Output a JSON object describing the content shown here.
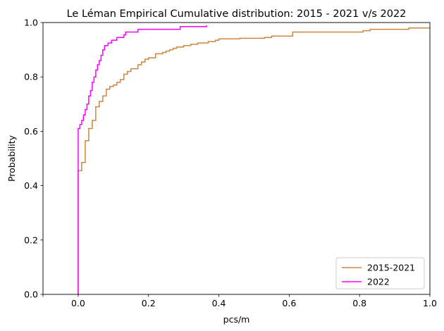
{
  "chart_data": {
    "type": "line",
    "subtype": "step-ecdf",
    "title": "Le Léman Empirical Cumulative distribution: 2015 - 2021 v/s 2022",
    "xlabel": "pcs/m",
    "ylabel": "Probability",
    "xlim": [
      -0.1,
      1.0
    ],
    "ylim": [
      0.0,
      1.0
    ],
    "xticks": [
      {
        "value": 0.0,
        "label": "0.0"
      },
      {
        "value": 0.2,
        "label": "0.2"
      },
      {
        "value": 0.4,
        "label": "0.4"
      },
      {
        "value": 0.6,
        "label": "0.6"
      },
      {
        "value": 0.8,
        "label": "0.8"
      },
      {
        "value": 1.0,
        "label": "1.0"
      }
    ],
    "yticks": [
      {
        "value": 0.0,
        "label": "0.0"
      },
      {
        "value": 0.2,
        "label": "0.2"
      },
      {
        "value": 0.4,
        "label": "0.4"
      },
      {
        "value": 0.6,
        "label": "0.6"
      },
      {
        "value": 0.8,
        "label": "0.8"
      },
      {
        "value": 1.0,
        "label": "1.0"
      }
    ],
    "xticks_minor": [
      -0.1
    ],
    "grid": false,
    "legend_position": "lower-right",
    "series": [
      {
        "name": "2015-2021",
        "color": "#cd853f",
        "points": [
          [
            0.0,
            0.455
          ],
          [
            0.01,
            0.485
          ],
          [
            0.02,
            0.565
          ],
          [
            0.03,
            0.61
          ],
          [
            0.04,
            0.64
          ],
          [
            0.05,
            0.69
          ],
          [
            0.06,
            0.71
          ],
          [
            0.07,
            0.73
          ],
          [
            0.08,
            0.755
          ],
          [
            0.09,
            0.765
          ],
          [
            0.1,
            0.77
          ],
          [
            0.11,
            0.78
          ],
          [
            0.12,
            0.79
          ],
          [
            0.13,
            0.81
          ],
          [
            0.14,
            0.82
          ],
          [
            0.15,
            0.83
          ],
          [
            0.17,
            0.845
          ],
          [
            0.18,
            0.855
          ],
          [
            0.19,
            0.865
          ],
          [
            0.2,
            0.87
          ],
          [
            0.22,
            0.885
          ],
          [
            0.24,
            0.89
          ],
          [
            0.25,
            0.895
          ],
          [
            0.26,
            0.9
          ],
          [
            0.27,
            0.905
          ],
          [
            0.28,
            0.91
          ],
          [
            0.3,
            0.915
          ],
          [
            0.32,
            0.92
          ],
          [
            0.34,
            0.925
          ],
          [
            0.37,
            0.93
          ],
          [
            0.39,
            0.935
          ],
          [
            0.4,
            0.94
          ],
          [
            0.46,
            0.942
          ],
          [
            0.53,
            0.945
          ],
          [
            0.55,
            0.95
          ],
          [
            0.61,
            0.965
          ],
          [
            0.81,
            0.97
          ],
          [
            0.83,
            0.975
          ],
          [
            0.94,
            0.98
          ],
          [
            1.0,
            0.98
          ]
        ]
      },
      {
        "name": "2022",
        "color": "#ff00ff",
        "points": [
          [
            0.0,
            0.61
          ],
          [
            0.005,
            0.625
          ],
          [
            0.01,
            0.64
          ],
          [
            0.015,
            0.66
          ],
          [
            0.02,
            0.68
          ],
          [
            0.025,
            0.7
          ],
          [
            0.03,
            0.73
          ],
          [
            0.035,
            0.75
          ],
          [
            0.04,
            0.78
          ],
          [
            0.045,
            0.8
          ],
          [
            0.05,
            0.825
          ],
          [
            0.055,
            0.845
          ],
          [
            0.06,
            0.86
          ],
          [
            0.065,
            0.88
          ],
          [
            0.07,
            0.9
          ],
          [
            0.075,
            0.915
          ],
          [
            0.085,
            0.925
          ],
          [
            0.095,
            0.935
          ],
          [
            0.11,
            0.945
          ],
          [
            0.13,
            0.955
          ],
          [
            0.135,
            0.965
          ],
          [
            0.17,
            0.975
          ],
          [
            0.29,
            0.985
          ],
          [
            0.365,
            0.99
          ]
        ]
      }
    ]
  }
}
